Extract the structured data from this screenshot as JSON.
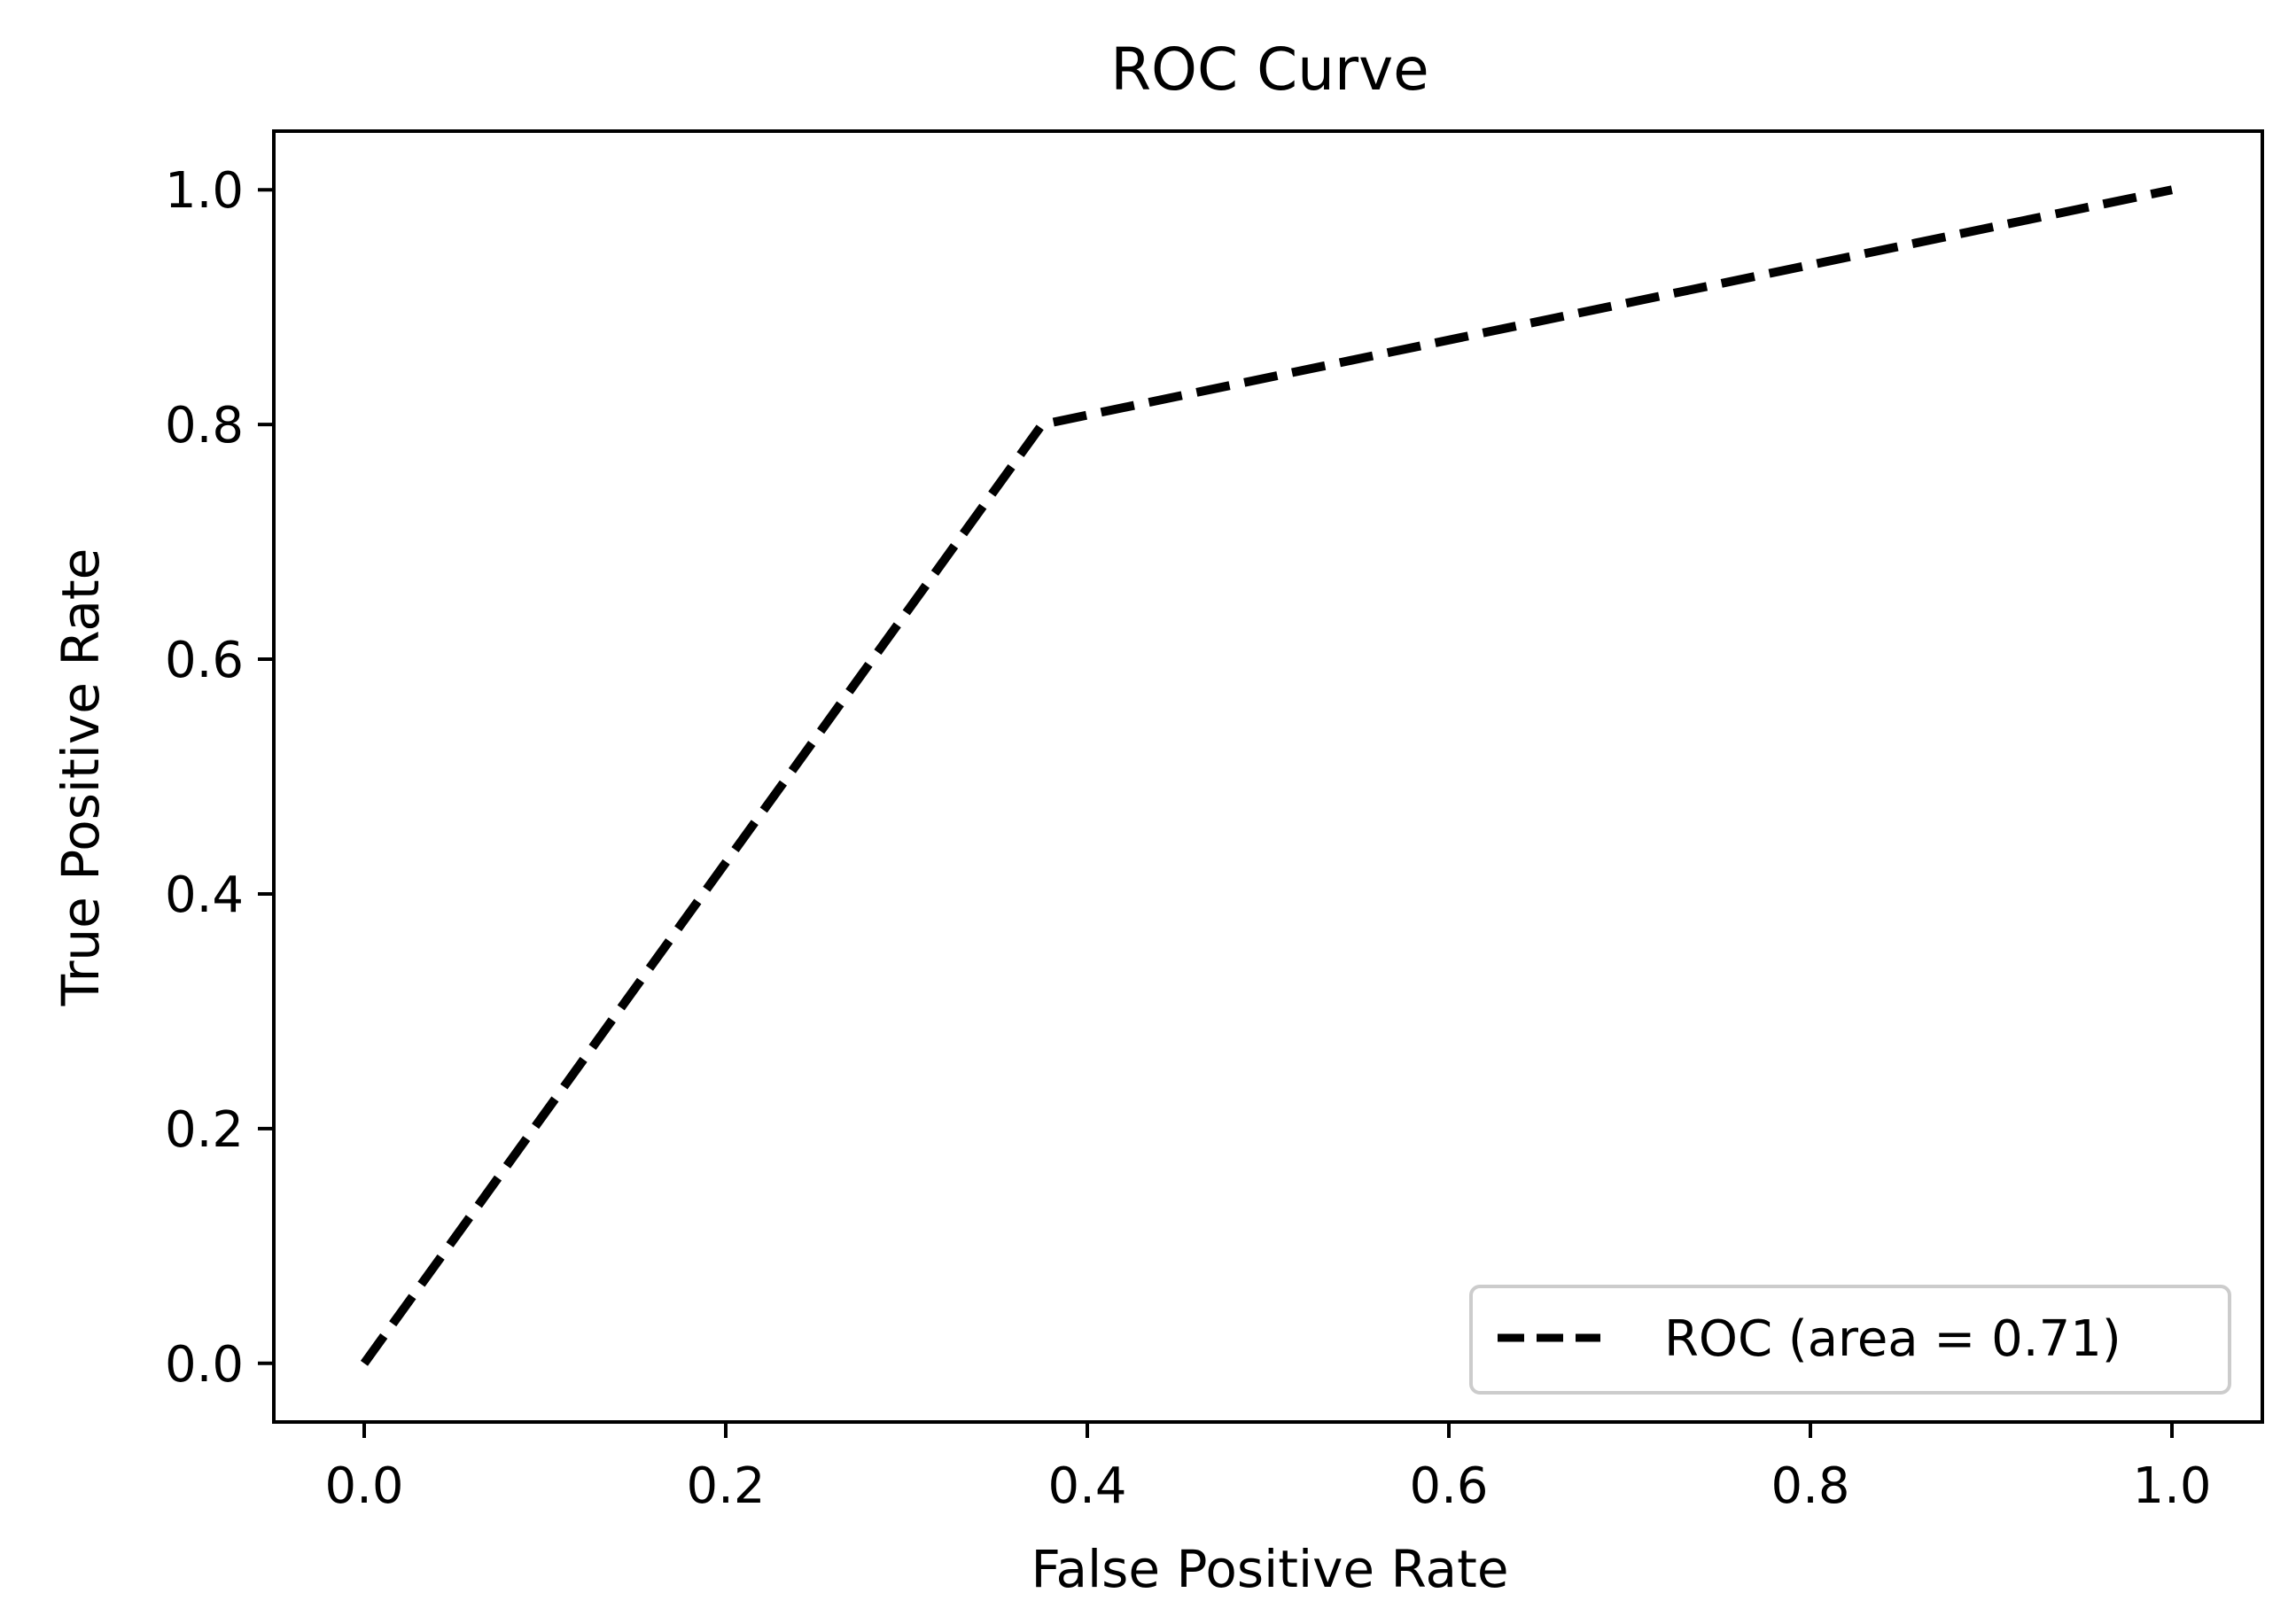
{
  "chart_data": {
    "type": "line",
    "title": "ROC Curve",
    "xlabel": "False Positive Rate",
    "ylabel": "True Positive Rate",
    "xlim": [
      -0.05,
      1.05
    ],
    "ylim": [
      -0.05,
      1.05
    ],
    "grid": false,
    "x_ticks": [
      0.0,
      0.2,
      0.4,
      0.6,
      0.8,
      1.0
    ],
    "x_tick_labels": [
      "0.0",
      "0.2",
      "0.4",
      "0.6",
      "0.8",
      "1.0"
    ],
    "y_ticks": [
      0.0,
      0.2,
      0.4,
      0.6,
      0.8,
      1.0
    ],
    "y_tick_labels": [
      "0.0",
      "0.2",
      "0.4",
      "0.6",
      "0.8",
      "1.0"
    ],
    "legend_position": "lower-right",
    "series": [
      {
        "name": "ROC (area = 0.71)",
        "line_style": "dashed",
        "color": "#000000",
        "x": [
          0.0,
          0.375,
          1.0
        ],
        "y": [
          0.0,
          0.8,
          1.0
        ]
      }
    ]
  }
}
